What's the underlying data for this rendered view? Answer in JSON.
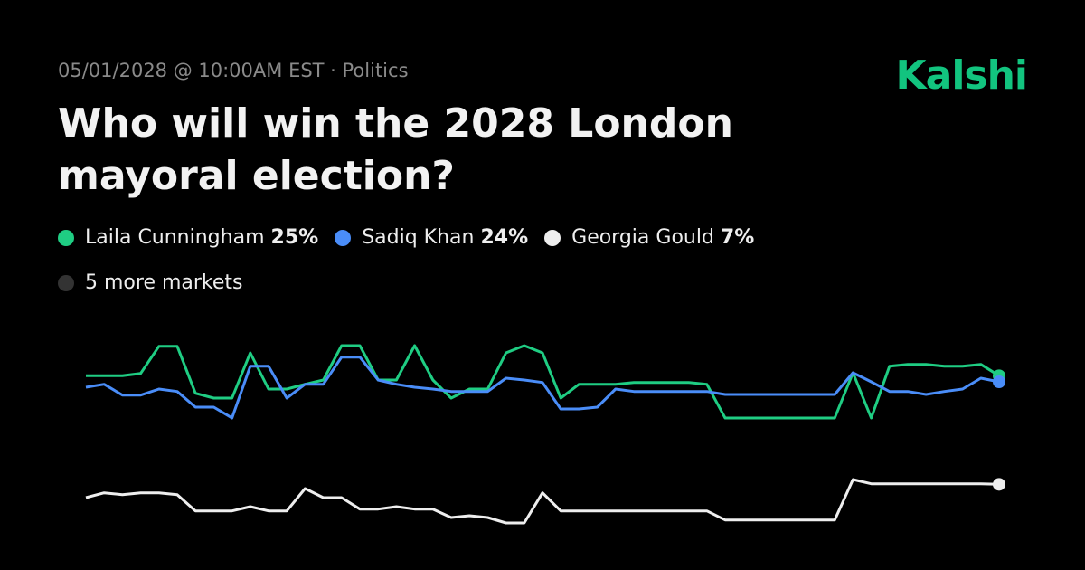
{
  "header": {
    "dateline": "05/01/2028 @ 10:00AM EST · Politics",
    "brand": "Kalshi"
  },
  "chart_data": {
    "type": "line",
    "title": "Who will win the 2028 London mayoral election?",
    "more_markets": "5 more markets",
    "more_color": "#333333",
    "categories": [
      null,
      null,
      null,
      null,
      null,
      null,
      null,
      null,
      null,
      null,
      null,
      null,
      null,
      null,
      null,
      null,
      null,
      null,
      null,
      null,
      null,
      null,
      null,
      null,
      null,
      null,
      null,
      null,
      null,
      null,
      null,
      null,
      null,
      null,
      null,
      null,
      null,
      null,
      null,
      null,
      null,
      null,
      null,
      null,
      null,
      null,
      null,
      null,
      null,
      null,
      null
    ],
    "ylim": [
      0,
      30
    ],
    "series": [
      {
        "name": "Laila Cunningham",
        "legend_value": "25%",
        "color": "#1fcd83",
        "values": [
          25,
          25,
          25,
          25.4,
          29.9,
          29.9,
          22.1,
          21.3,
          21.3,
          28.8,
          22.8,
          22.8,
          23.6,
          24.3,
          30,
          30,
          24.3,
          24.3,
          30,
          24.3,
          21.3,
          22.8,
          22.8,
          28.8,
          30,
          28.8,
          21.3,
          23.6,
          23.6,
          23.6,
          23.9,
          23.9,
          23.9,
          23.9,
          23.6,
          18,
          18,
          18,
          18,
          18,
          18,
          18,
          25.5,
          18,
          26.6,
          26.9,
          26.9,
          26.6,
          26.6,
          26.9,
          25
        ]
      },
      {
        "name": "Sadiq Khan",
        "legend_value": "24%",
        "color": "#4a8df8",
        "values": [
          23.1,
          23.6,
          21.8,
          21.8,
          22.8,
          22.4,
          19.8,
          19.8,
          18,
          26.6,
          26.6,
          21.3,
          23.6,
          23.6,
          28.1,
          28.1,
          24.3,
          23.6,
          23.1,
          22.8,
          22.4,
          22.4,
          22.4,
          24.6,
          24.3,
          23.9,
          19.5,
          19.5,
          19.8,
          22.8,
          22.4,
          22.4,
          22.4,
          22.4,
          22.4,
          21.9,
          21.9,
          21.9,
          21.9,
          21.9,
          21.9,
          21.9,
          25.5,
          24,
          22.4,
          22.4,
          21.9,
          22.4,
          22.8,
          24.6,
          24
        ]
      },
      {
        "name": "Georgia Gould",
        "legend_value": "7%",
        "color": "#eeeeee",
        "values": [
          4.8,
          5.6,
          5.3,
          5.6,
          5.6,
          5.3,
          2.6,
          2.6,
          2.6,
          3.3,
          2.6,
          2.6,
          6.3,
          4.8,
          4.8,
          2.9,
          2.9,
          3.3,
          2.9,
          2.9,
          1.5,
          1.8,
          1.5,
          0.6,
          0.6,
          5.6,
          2.6,
          2.6,
          2.6,
          2.6,
          2.6,
          2.6,
          2.6,
          2.6,
          2.6,
          1.1,
          1.1,
          1.1,
          1.1,
          1.1,
          1.1,
          1.1,
          7.8,
          7.1,
          7.1,
          7.1,
          7.1,
          7.1,
          7.1,
          7.1,
          7
        ]
      }
    ]
  }
}
